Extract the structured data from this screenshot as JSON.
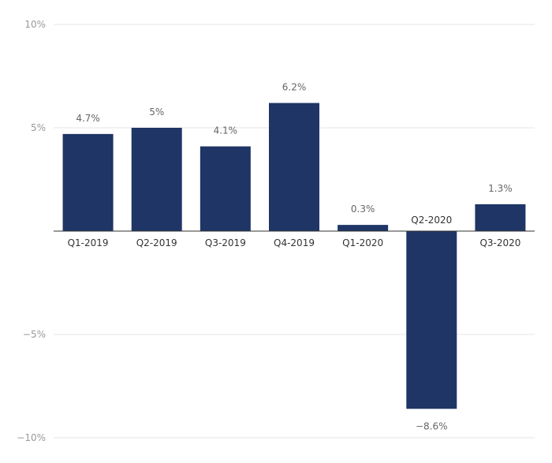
{
  "chart_data": {
    "type": "bar",
    "title": "",
    "xlabel": "",
    "ylabel": "",
    "categories": [
      "Q1-2019",
      "Q2-2019",
      "Q3-2019",
      "Q4-2019",
      "Q1-2020",
      "Q2-2020",
      "Q3-2020"
    ],
    "values": [
      4.7,
      5,
      4.1,
      6.2,
      0.3,
      -8.6,
      1.3
    ],
    "data_labels": [
      "4.7%",
      "5%",
      "4.1%",
      "6.2%",
      "0.3%",
      "−8.6%",
      "1.3%"
    ],
    "ylim": [
      -10,
      10
    ],
    "yticks": [
      10,
      5,
      0,
      -5,
      -10
    ],
    "ytick_labels": [
      "10%",
      "5%",
      "",
      "−5%",
      "−10%"
    ],
    "grid": true,
    "legend": "none",
    "bar_color": "#1f3566"
  }
}
